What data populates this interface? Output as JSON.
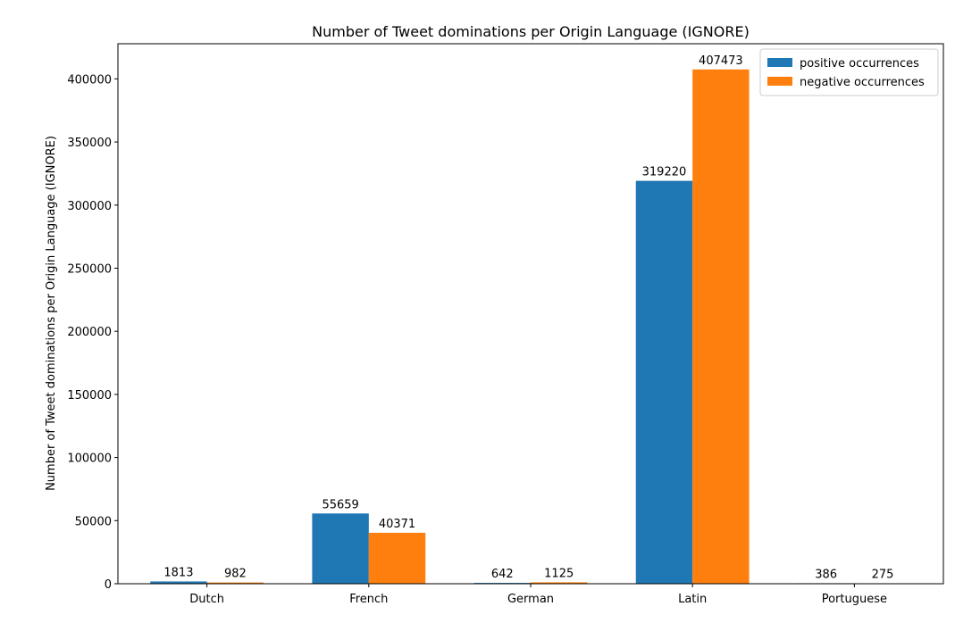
{
  "chart_data": {
    "type": "bar",
    "title": "Number of Tweet dominations per Origin Language (IGNORE)",
    "xlabel": "",
    "ylabel": "Number of Tweet dominations per Origin Language (IGNORE)",
    "categories": [
      "Dutch",
      "French",
      "German",
      "Latin",
      "Portuguese"
    ],
    "series": [
      {
        "name": "positive occurrences",
        "color": "#1f77b4",
        "values": [
          1813,
          55659,
          642,
          319220,
          386
        ]
      },
      {
        "name": "negative occurrences",
        "color": "#ff7f0e",
        "values": [
          982,
          40371,
          1125,
          407473,
          275
        ]
      }
    ],
    "ylim": [
      0,
      427847
    ],
    "yticks": [
      0,
      50000,
      100000,
      150000,
      200000,
      250000,
      300000,
      350000,
      400000
    ],
    "legend": "top-right",
    "grid": false
  }
}
